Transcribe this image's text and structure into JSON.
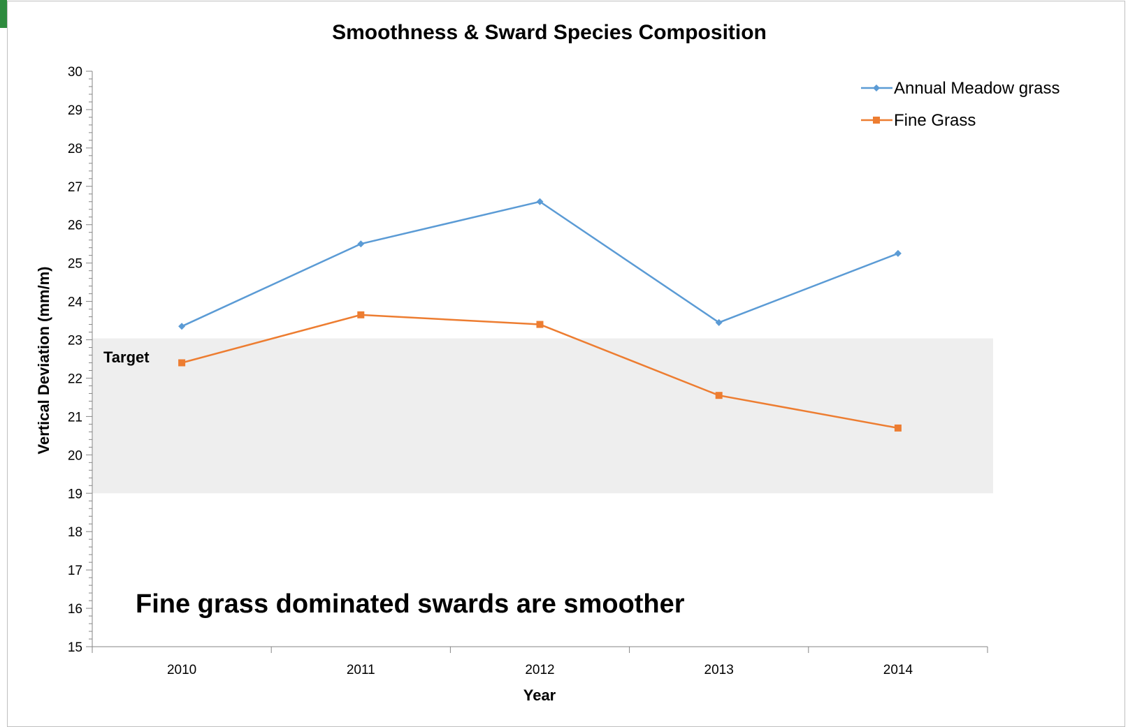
{
  "chart_data": {
    "type": "line",
    "title": "Smoothness & Sward Species Composition",
    "xlabel": "Year",
    "ylabel": "Vertical Deviation (mm/m)",
    "categories": [
      "2010",
      "2011",
      "2012",
      "2013",
      "2014"
    ],
    "ylim": [
      15,
      30
    ],
    "y_ticks": [
      15,
      16,
      17,
      18,
      19,
      20,
      21,
      22,
      23,
      24,
      25,
      26,
      27,
      28,
      29,
      30
    ],
    "grid": false,
    "legend_position": "top-right",
    "series": [
      {
        "name": "Annual Meadow grass",
        "values": [
          23.35,
          25.5,
          26.6,
          23.45,
          25.25
        ],
        "color": "#5b9bd5",
        "marker": "diamond"
      },
      {
        "name": "Fine Grass",
        "values": [
          22.4,
          23.65,
          23.4,
          21.55,
          20.7
        ],
        "color": "#ed7d31",
        "marker": "square"
      }
    ],
    "target_band": {
      "label": "Target",
      "range": [
        19,
        23
      ],
      "color": "#eeeeee"
    },
    "annotation": "Fine grass dominated swards are smoother"
  }
}
